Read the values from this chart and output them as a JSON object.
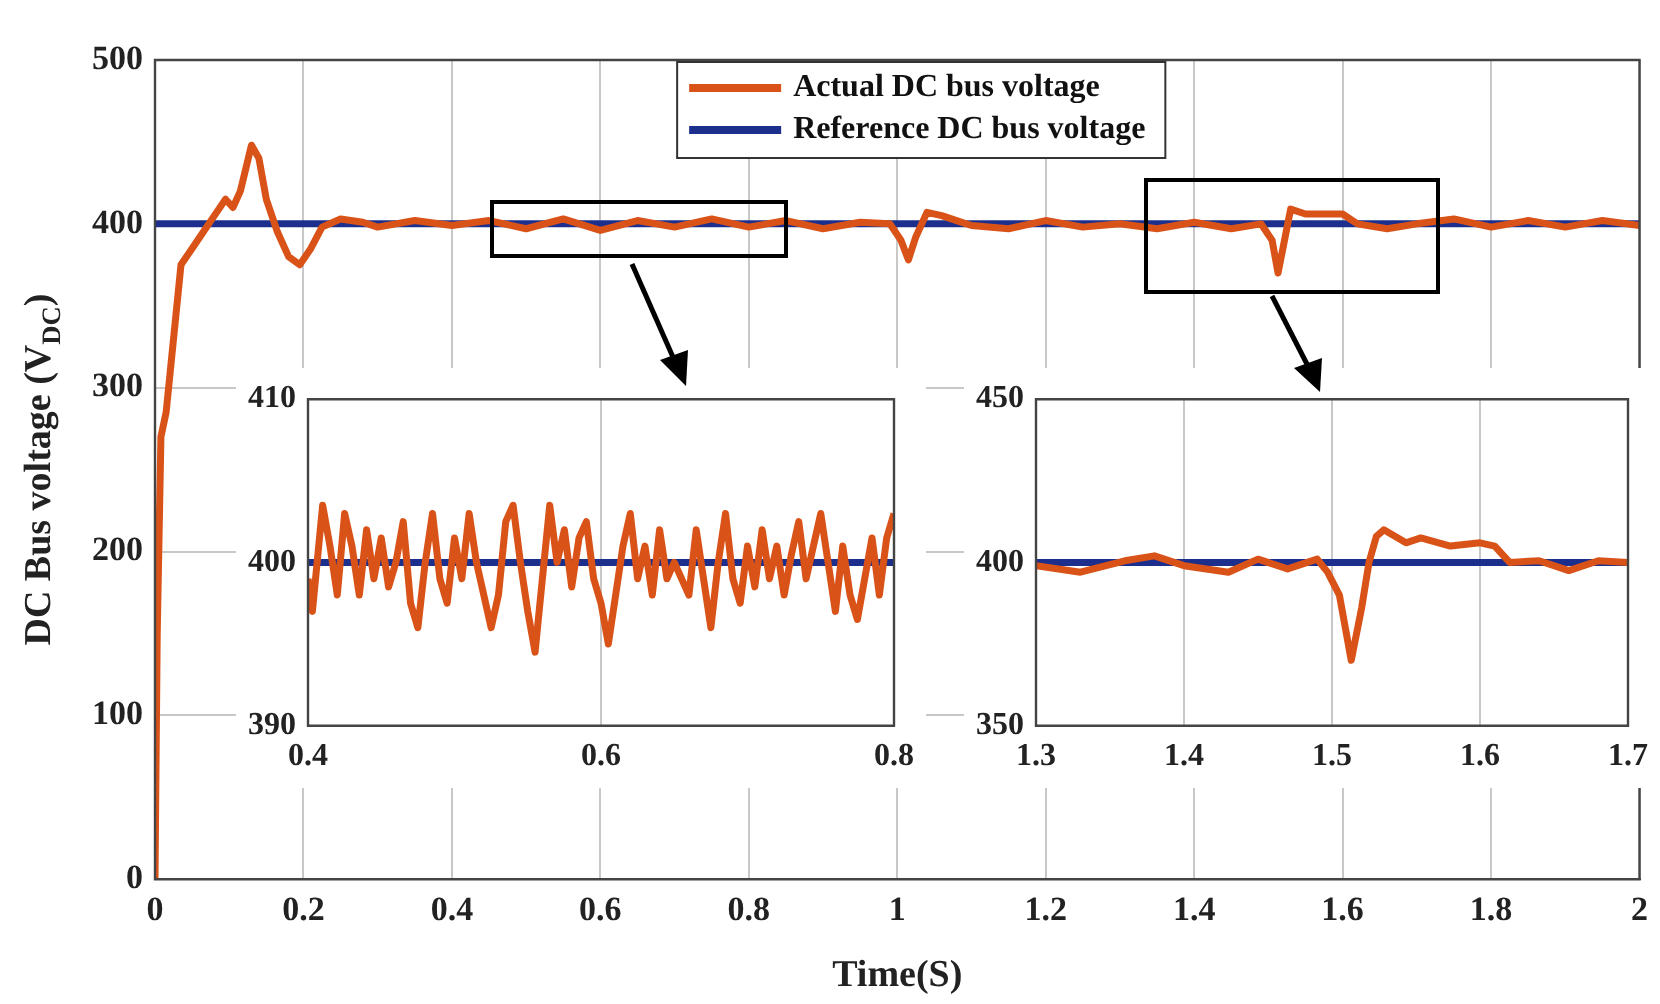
{
  "chart_data": [
    {
      "type": "line",
      "xlabel": "Time(S)",
      "ylabel": "DC Bus voltage (V$_{DC}$)",
      "xlim": [
        0,
        2
      ],
      "xticks": [
        0,
        0.2,
        0.4,
        0.6,
        0.8,
        1,
        1.2,
        1.4,
        1.6,
        1.8,
        2
      ],
      "ylim": [
        0,
        500
      ],
      "yticks": [
        0,
        100,
        200,
        300,
        400,
        500
      ],
      "grid": true,
      "legend": "top",
      "series": [
        {
          "name": "Actual DC bus voltage",
          "color": "#d95319",
          "x": [
            0,
            0.003,
            0.008,
            0.015,
            0.025,
            0.035,
            0.05,
            0.065,
            0.08,
            0.095,
            0.105,
            0.115,
            0.13,
            0.14,
            0.15,
            0.165,
            0.18,
            0.195,
            0.21,
            0.225,
            0.25,
            0.28,
            0.3,
            0.35,
            0.4,
            0.45,
            0.5,
            0.55,
            0.6,
            0.65,
            0.7,
            0.75,
            0.8,
            0.85,
            0.9,
            0.95,
            0.99,
            1.005,
            1.015,
            1.025,
            1.04,
            1.06,
            1.08,
            1.1,
            1.15,
            1.2,
            1.25,
            1.3,
            1.35,
            1.4,
            1.45,
            1.49,
            1.505,
            1.513,
            1.52,
            1.53,
            1.55,
            1.6,
            1.62,
            1.66,
            1.7,
            1.75,
            1.8,
            1.85,
            1.9,
            1.95,
            2
          ],
          "values": [
            0,
            150,
            270,
            285,
            330,
            375,
            385,
            395,
            405,
            415,
            410,
            420,
            448,
            440,
            415,
            395,
            380,
            375,
            385,
            398,
            403,
            401,
            398,
            402,
            399,
            402,
            397,
            403,
            396,
            402,
            398,
            403,
            398,
            402,
            397,
            401,
            400,
            390,
            378,
            392,
            407,
            405,
            402,
            399,
            397,
            402,
            398,
            400,
            397,
            401,
            397,
            400,
            390,
            370,
            386,
            409,
            406,
            406,
            400,
            397,
            400,
            403,
            398,
            402,
            398,
            402,
            399
          ]
        },
        {
          "name": "Reference DC bus voltage",
          "color": "#1c2f8c",
          "x": [
            0,
            2
          ],
          "values": [
            400,
            400
          ]
        }
      ]
    },
    {
      "type": "line",
      "xlim": [
        0.4,
        0.8
      ],
      "xticks": [
        0.4,
        0.6,
        0.8
      ],
      "ylim": [
        390,
        410
      ],
      "yticks": [
        390,
        400,
        410
      ],
      "grid": true,
      "series": [
        {
          "color": "#d95319",
          "x": [
            0.4,
            0.403,
            0.41,
            0.415,
            0.42,
            0.425,
            0.43,
            0.435,
            0.44,
            0.445,
            0.45,
            0.455,
            0.46,
            0.465,
            0.47,
            0.475,
            0.48,
            0.485,
            0.49,
            0.495,
            0.5,
            0.505,
            0.51,
            0.515,
            0.52,
            0.525,
            0.53,
            0.535,
            0.54,
            0.545,
            0.55,
            0.555,
            0.56,
            0.565,
            0.57,
            0.575,
            0.58,
            0.585,
            0.59,
            0.595,
            0.6,
            0.605,
            0.61,
            0.615,
            0.62,
            0.625,
            0.63,
            0.635,
            0.64,
            0.645,
            0.65,
            0.66,
            0.665,
            0.67,
            0.675,
            0.68,
            0.685,
            0.69,
            0.695,
            0.7,
            0.705,
            0.71,
            0.715,
            0.72,
            0.725,
            0.73,
            0.735,
            0.74,
            0.745,
            0.75,
            0.755,
            0.76,
            0.765,
            0.77,
            0.775,
            0.78,
            0.785,
            0.79,
            0.795,
            0.8
          ],
          "values": [
            399,
            397,
            403.5,
            401,
            398,
            403,
            401,
            398,
            402,
            399,
            401.5,
            398.5,
            400,
            402.5,
            397.5,
            396,
            400,
            403,
            399,
            397.5,
            401.5,
            399,
            403,
            400,
            398,
            396,
            398,
            402.5,
            403.5,
            400,
            397,
            394.5,
            399,
            403.5,
            400,
            402,
            398.5,
            401.5,
            402.5,
            399,
            397.5,
            395,
            398,
            401,
            403,
            399,
            401,
            398,
            402,
            399,
            400,
            398,
            402,
            399,
            396,
            400,
            403,
            399,
            397.5,
            401,
            398.5,
            402,
            399,
            401,
            398,
            400.5,
            402.5,
            399,
            401,
            403,
            400,
            397,
            401,
            398,
            396.5,
            399,
            401.5,
            398,
            401.5,
            403
          ]
        },
        {
          "color": "#1c2f8c",
          "x": [
            0.4,
            0.8
          ],
          "values": [
            400,
            400
          ]
        }
      ]
    },
    {
      "type": "line",
      "xlim": [
        1.3,
        1.7
      ],
      "xticks": [
        1.3,
        1.4,
        1.5,
        1.6,
        1.7
      ],
      "ylim": [
        350,
        450
      ],
      "yticks": [
        350,
        400,
        450
      ],
      "grid": true,
      "series": [
        {
          "color": "#d95319",
          "x": [
            1.3,
            1.33,
            1.36,
            1.38,
            1.4,
            1.43,
            1.45,
            1.47,
            1.49,
            1.497,
            1.505,
            1.513,
            1.52,
            1.525,
            1.53,
            1.535,
            1.55,
            1.56,
            1.58,
            1.6,
            1.61,
            1.62,
            1.64,
            1.66,
            1.68,
            1.7
          ],
          "values": [
            399,
            397,
            400.5,
            402,
            399,
            397,
            401,
            398,
            401,
            397,
            390,
            370,
            386,
            400,
            408,
            410,
            406,
            407.5,
            405,
            406,
            405,
            400,
            400.5,
            397.5,
            400.5,
            400
          ]
        },
        {
          "color": "#1c2f8c",
          "x": [
            1.3,
            1.7
          ],
          "values": [
            400,
            400
          ]
        }
      ]
    }
  ]
}
